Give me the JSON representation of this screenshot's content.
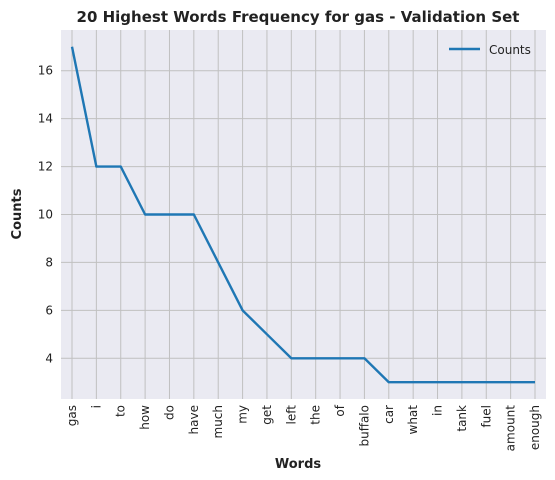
{
  "chart_data": {
    "type": "line",
    "title": "20 Highest Words Frequency for gas - Validation Set",
    "xlabel": "Words",
    "ylabel": "Counts",
    "categories": [
      "gas",
      "i",
      "to",
      "how",
      "do",
      "have",
      "much",
      "my",
      "get",
      "left",
      "the",
      "of",
      "buffalo",
      "car",
      "what",
      "in",
      "tank",
      "fuel",
      "amount",
      "enough"
    ],
    "series": [
      {
        "name": "Counts",
        "values": [
          17,
          12,
          12,
          10,
          10,
          10,
          8,
          6,
          5,
          4,
          4,
          4,
          4,
          3,
          3,
          3,
          3,
          3,
          3,
          3
        ]
      }
    ],
    "yticks": [
      4,
      6,
      8,
      10,
      12,
      14,
      16
    ],
    "ylim": [
      2.3,
      17.7
    ],
    "grid": true,
    "legend_position": "top-right",
    "colors": {
      "line": "#1f77b4",
      "background": "#eaeaf2",
      "grid": "#c0c0c0"
    }
  }
}
